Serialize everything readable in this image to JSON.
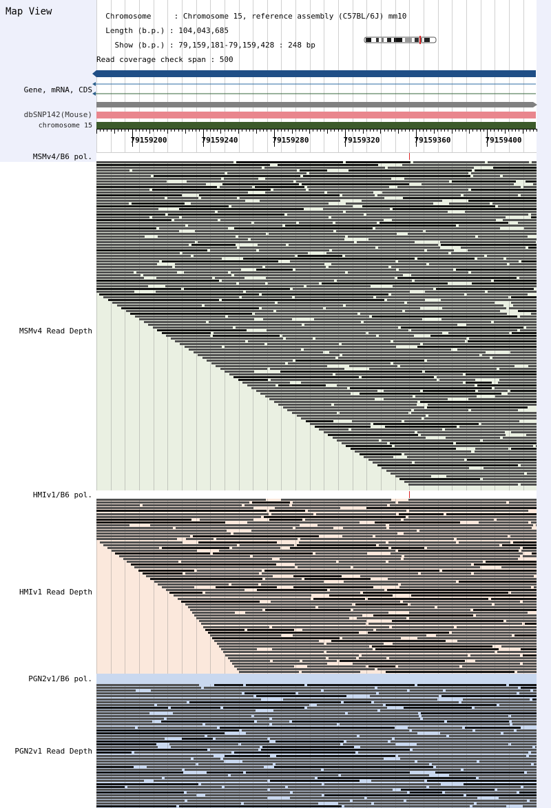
{
  "map_title": "Map View",
  "header": {
    "lines": [
      "  Chromosome     : Chromosome 15, reference assembly (C57BL/6J) mm10",
      "  Length (b.p.) : 104,043,685",
      "    Show (b.p.) : 79,159,181-79,159,428 : 248 bp",
      "Read coverage check span : 500"
    ]
  },
  "tracks": {
    "gene_label": "Gene, mRNA, CDS",
    "dbsnp_label": "dbSNP142(Mouse)",
    "chrom_label": "chromosome 15"
  },
  "ruler": {
    "ticks": [
      "79159200",
      "79159240",
      "79159280",
      "79159320",
      "79159360",
      "79159400"
    ]
  },
  "sections": [
    {
      "pol_label": "MSMv4/B6 pol.",
      "depth_label": "MSMv4 Read Depth",
      "bg": "#eaf0e2"
    },
    {
      "pol_label": "HMIv1/B6 pol.",
      "depth_label": "HMIv1 Read Depth",
      "bg": "#fbe8dc"
    },
    {
      "pol_label": "PGN2v1/B6 pol.",
      "depth_label": "PGN2v1 Read Depth",
      "bg": "#c9d8ef"
    }
  ],
  "colors": {
    "gene_bar": "#1f4e86",
    "snp_bar": "#e9868d",
    "chrom_bar": "#3c5a2a",
    "grey_bar": "#808080",
    "read_dark": "#505050",
    "read_black": "#111111",
    "pol_marker": "#d22222"
  },
  "icons": {
    "chromosome_ideogram": "chromosome-ideogram-icon"
  }
}
